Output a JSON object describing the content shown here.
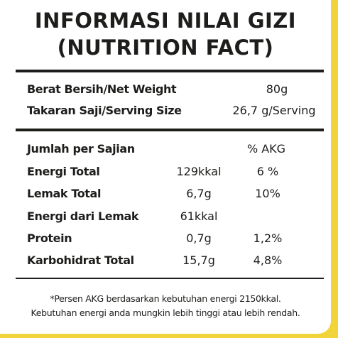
{
  "title": [
    "INFORMASI NILAI GIZI",
    "(NUTRITION FACT)"
  ],
  "serving": [
    {
      "label": "Berat Bersih/Net Weight",
      "value": "80g"
    },
    {
      "label": "Takaran Saji/Serving Size",
      "value": "26,7 g/Serving"
    }
  ],
  "table": {
    "header": {
      "label": "Jumlah per Sajian",
      "akg": "% AKG"
    },
    "rows": [
      {
        "label": "Energi Total",
        "amount": "129kkal",
        "akg": "6 %"
      },
      {
        "label": "Lemak Total",
        "amount": "6,7g",
        "akg": "10%"
      },
      {
        "label": "Energi dari Lemak",
        "amount": "61kkal"
      },
      {
        "label": "Protein",
        "amount": "0,7g",
        "akg": "1,2%"
      },
      {
        "label": "Karbohidrat Total",
        "amount": "15,7g",
        "akg": "4,8%"
      }
    ]
  },
  "footnote": [
    "*Persen AKG berdasarkan kebutuhan energi 2150kkal.",
    "Kebutuhan energi anda mungkin lebih tinggi atau lebih rendah."
  ]
}
